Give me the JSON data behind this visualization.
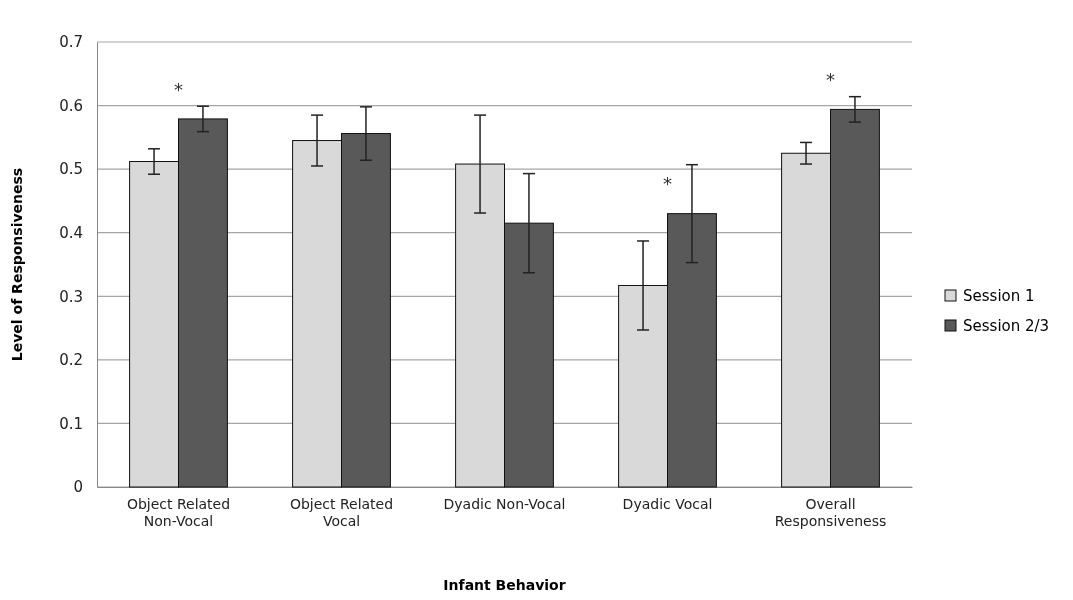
{
  "chart_data": {
    "type": "bar",
    "xlabel": "Infant Behavior",
    "ylabel": "Level of Responsiveness",
    "categories": [
      "Object Related Non-Vocal",
      "Object Related Vocal",
      "Dyadic Non-Vocal",
      "Dyadic Vocal",
      "Overall Responsiveness"
    ],
    "series": [
      {
        "name": "Session 1",
        "color": "#d9d9d9",
        "values": [
          0.512,
          0.545,
          0.508,
          0.317,
          0.525
        ],
        "errors": [
          0.02,
          0.04,
          0.077,
          0.07,
          0.017
        ]
      },
      {
        "name": "Session 2/3",
        "color": "#595959",
        "values": [
          0.579,
          0.556,
          0.415,
          0.43,
          0.594
        ],
        "errors": [
          0.02,
          0.042,
          0.078,
          0.077,
          0.02
        ]
      }
    ],
    "ylim": [
      0,
      0.7
    ],
    "yticks": [
      0,
      0.1,
      0.2,
      0.3,
      0.4,
      0.5,
      0.6,
      0.7
    ],
    "grid": "y",
    "legend": "right",
    "annotations": [
      {
        "text": "*",
        "x": "Object Related Non-Vocal",
        "y": 0.579
      },
      {
        "text": "*",
        "x": "Dyadic Vocal",
        "y": 0.43
      },
      {
        "text": "*",
        "x": "Overall Responsiveness",
        "y": 0.594
      }
    ]
  }
}
